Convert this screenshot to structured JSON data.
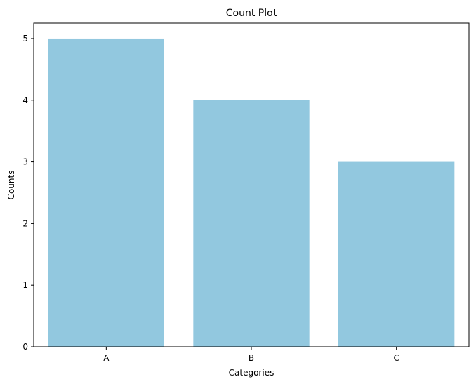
{
  "chart_data": {
    "type": "bar",
    "title": "Count Plot",
    "xlabel": "Categories",
    "ylabel": "Counts",
    "categories": [
      "A",
      "B",
      "C"
    ],
    "values": [
      5,
      4,
      3
    ],
    "ylim": [
      0,
      5.25
    ],
    "yticks": [
      0,
      1,
      2,
      3,
      4,
      5
    ],
    "bar_color": "#92c8df",
    "grid": false,
    "legend": "none"
  }
}
